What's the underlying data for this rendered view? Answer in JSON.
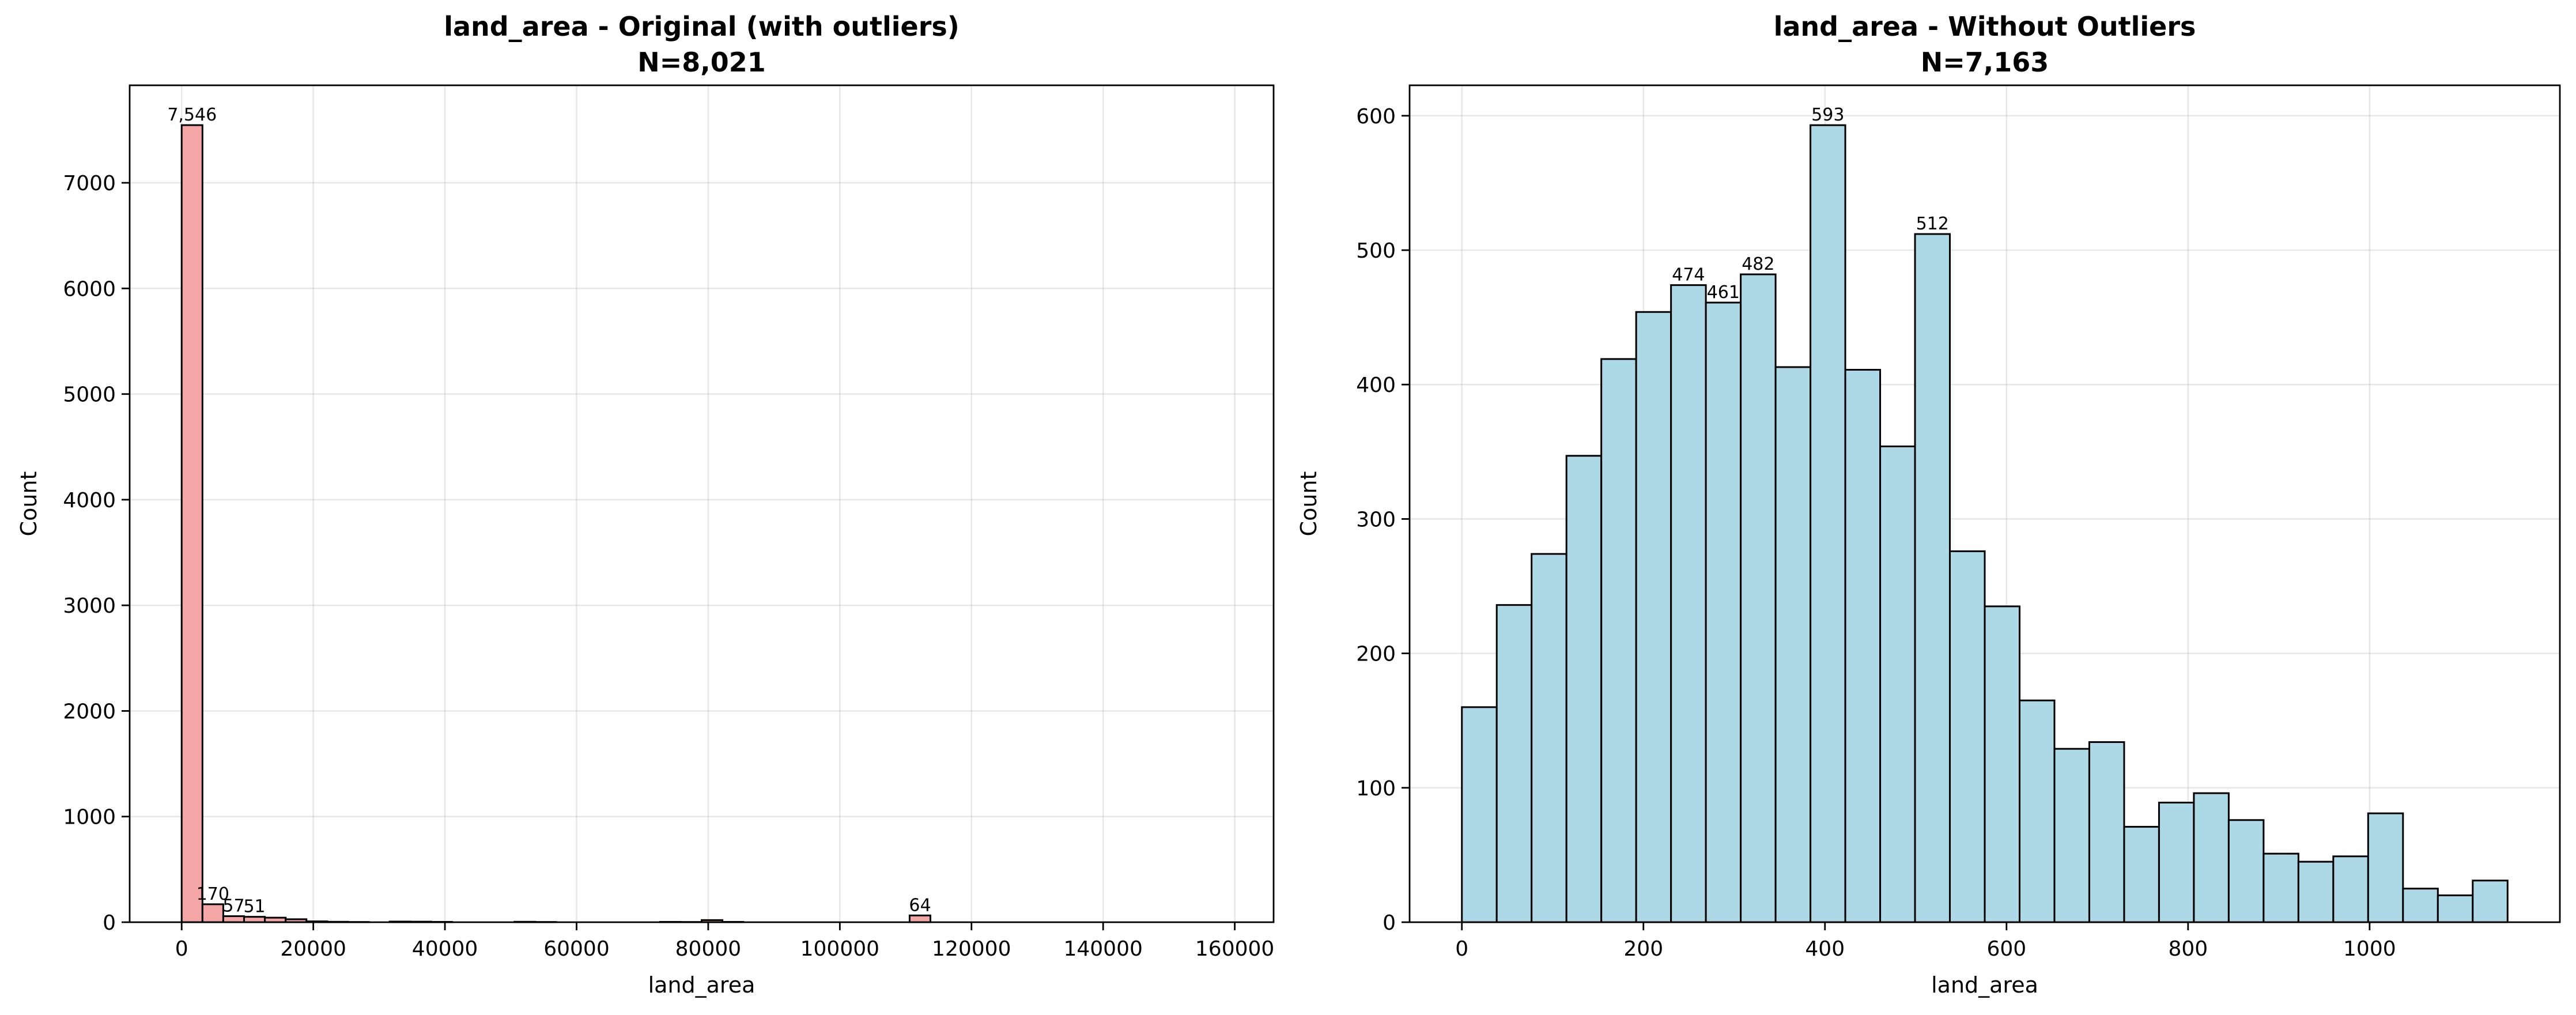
{
  "chart_data": [
    {
      "type": "histogram",
      "title": "land_area - Original (with outliers)",
      "subtitle": "N=8,021",
      "xlabel": "land_area",
      "ylabel": "Count",
      "color": "#f4a6a6",
      "edgecolor": "#000000",
      "grid": true,
      "bins": [
        0,
        3160,
        6320,
        9480,
        12640,
        15800,
        18960,
        22120,
        25280,
        28440,
        31600,
        34760,
        37920,
        41080,
        44240,
        47400,
        50560,
        53720,
        56880,
        60040,
        63200,
        66360,
        69520,
        72680,
        75840,
        79000,
        82160,
        85320,
        88480,
        91640,
        94800,
        97960,
        101120,
        104280,
        107440,
        110600,
        113760,
        116920,
        120080,
        123240,
        126400,
        129560,
        132720,
        135880,
        139040,
        142200,
        145360,
        148520,
        151680,
        154840,
        158000
      ],
      "values": [
        7546,
        170,
        57,
        51,
        43,
        28,
        8,
        4,
        2,
        0,
        6,
        5,
        3,
        0,
        0,
        0,
        4,
        2,
        0,
        0,
        0,
        0,
        0,
        3,
        2,
        20,
        3,
        0,
        0,
        0,
        0,
        0,
        0,
        0,
        0,
        64,
        0,
        0,
        0,
        0,
        0,
        0,
        0,
        0,
        0,
        0,
        0,
        0,
        0,
        0
      ],
      "value_labels": [
        "7,546",
        "170",
        "57",
        "51",
        null,
        null,
        null,
        null,
        null,
        null,
        null,
        null,
        null,
        null,
        null,
        null,
        null,
        null,
        null,
        null,
        null,
        null,
        null,
        null,
        null,
        null,
        null,
        null,
        null,
        null,
        null,
        null,
        null,
        null,
        null,
        "64",
        null,
        null,
        null,
        null,
        null,
        null,
        null,
        null,
        null,
        null,
        null,
        null,
        null,
        null
      ],
      "xlim": [
        -7900,
        165900
      ],
      "ylim": [
        0,
        7923
      ],
      "xticks": [
        0,
        20000,
        40000,
        60000,
        80000,
        100000,
        120000,
        140000,
        160000
      ],
      "yticks": [
        0,
        1000,
        2000,
        3000,
        4000,
        5000,
        6000,
        7000
      ]
    },
    {
      "type": "histogram",
      "title": "land_area - Without Outliers",
      "subtitle": "N=7,163",
      "xlabel": "land_area",
      "ylabel": "Count",
      "color": "#add8e6",
      "edgecolor": "#000000",
      "grid": true,
      "bins": [
        0,
        38.4,
        76.8,
        115.2,
        153.6,
        192,
        230.4,
        268.8,
        307.2,
        345.6,
        384,
        422.4,
        460.8,
        499.2,
        537.6,
        576,
        614.4,
        652.8,
        691.2,
        729.6,
        768,
        806.4,
        844.8,
        883.2,
        921.6,
        960,
        998.4,
        1036.8,
        1075.2,
        1113.6,
        1152
      ],
      "values": [
        160,
        236,
        274,
        347,
        419,
        454,
        474,
        461,
        482,
        413,
        593,
        411,
        354,
        512,
        276,
        235,
        165,
        129,
        134,
        71,
        89,
        96,
        76,
        51,
        45,
        49,
        81,
        25,
        20,
        31
      ],
      "value_labels": [
        null,
        null,
        null,
        null,
        null,
        null,
        "474",
        "461",
        "482",
        null,
        "593",
        null,
        null,
        "512",
        null,
        null,
        null,
        null,
        null,
        null,
        null,
        null,
        null,
        null,
        null,
        null,
        null,
        null,
        null,
        null
      ],
      "xlim": [
        -57.6,
        1209.6
      ],
      "ylim": [
        0,
        622.65
      ],
      "xticks": [
        0,
        200,
        400,
        600,
        800,
        1000
      ],
      "yticks": [
        0,
        100,
        200,
        300,
        400,
        500,
        600
      ]
    }
  ]
}
